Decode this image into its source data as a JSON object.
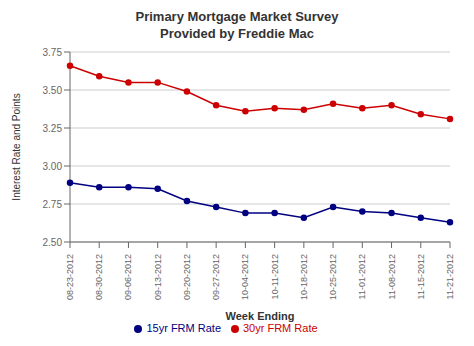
{
  "chart_data": {
    "type": "line",
    "title": "Primary Mortgage Market Survey",
    "subtitle": "Provided by Freddie Mac",
    "xlabel": "Week Ending",
    "ylabel": "Interest Rate and Points",
    "categories": [
      "08-23-2012",
      "08-30-2012",
      "09-06-2012",
      "09-13-2012",
      "09-20-2012",
      "09-27-2012",
      "10-04-2012",
      "10-11-2012",
      "10-18-2012",
      "10-25-2012",
      "11-01-2012",
      "11-08-2012",
      "11-15-2012",
      "11-21-2012"
    ],
    "series": [
      {
        "name": "30yr FRM Rate",
        "color": "#cc0000",
        "marker": "circle",
        "values": [
          3.66,
          3.59,
          3.55,
          3.55,
          3.49,
          3.4,
          3.36,
          3.38,
          3.37,
          3.41,
          3.38,
          3.4,
          3.34,
          3.31
        ]
      },
      {
        "name": "15yr FRM Rate",
        "color": "#000080",
        "marker": "circle",
        "values": [
          2.89,
          2.86,
          2.86,
          2.85,
          2.77,
          2.73,
          2.69,
          2.69,
          2.66,
          2.73,
          2.7,
          2.69,
          2.66,
          2.63
        ]
      }
    ],
    "ylim": [
      2.5,
      3.75
    ],
    "yticks": [
      {
        "value": 2.5,
        "label": "2.50"
      },
      2.75,
      {
        "value": 3.0,
        "label": "3.00"
      },
      3.25,
      {
        "value": 3.5,
        "label": "3.50"
      },
      3.75
    ],
    "grid": true,
    "legend": "bottom"
  }
}
